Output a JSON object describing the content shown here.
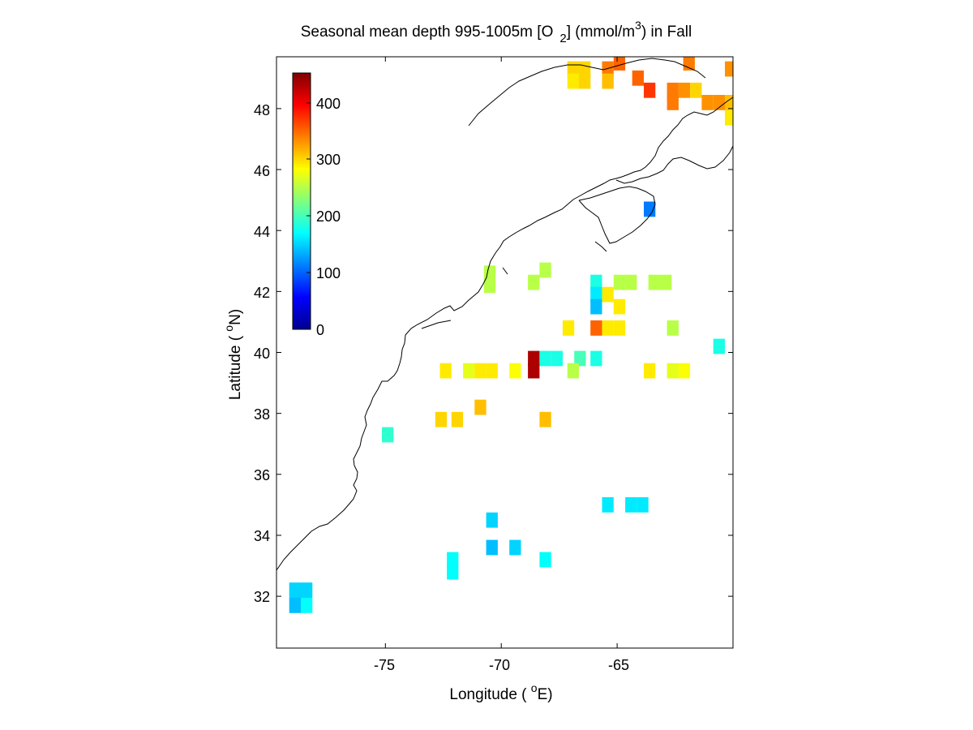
{
  "figure": {
    "title_main": "Seasonal mean depth 995-1005m [O",
    "title_sub": "2",
    "title_mid": "] (mmol/m",
    "title_sup": "3",
    "title_end": ") in  Fall"
  },
  "axes": {
    "xlabel_pre": "Longitude ( ",
    "xlabel_deg": "o",
    "xlabel_post": "E)",
    "ylabel_pre": "Latitude ( ",
    "ylabel_deg": "o",
    "ylabel_post": "N)",
    "xticks": [
      "-75",
      "-70",
      "-65"
    ],
    "yticks": [
      "32",
      "34",
      "36",
      "38",
      "40",
      "42",
      "44",
      "46",
      "48"
    ]
  },
  "colorbar": {
    "ticks": [
      "0",
      "100",
      "200",
      "300",
      "400"
    ],
    "range": [
      0,
      450
    ],
    "colormap": "jet"
  },
  "chart_data": {
    "type": "heatmap",
    "title": "Seasonal mean depth 995-1005m [O2] (mmol/m3) in Fall",
    "xlabel": "Longitude ( oE)",
    "ylabel": "Latitude ( oN)",
    "xlim": [
      -79.7,
      -60.0
    ],
    "ylim": [
      30.3,
      49.7
    ],
    "cell_size_deg": 0.5,
    "value_range": [
      0,
      450
    ],
    "units": "mmol/m3",
    "cells": [
      {
        "lon": -66.9,
        "lat": 49.3,
        "v": 300
      },
      {
        "lon": -66.4,
        "lat": 49.3,
        "v": 300
      },
      {
        "lon": -65.4,
        "lat": 49.3,
        "v": 340
      },
      {
        "lon": -64.9,
        "lat": 49.5,
        "v": 350
      },
      {
        "lon": -61.9,
        "lat": 49.5,
        "v": 340
      },
      {
        "lon": -60.1,
        "lat": 49.3,
        "v": 330
      },
      {
        "lon": -66.9,
        "lat": 48.9,
        "v": 290
      },
      {
        "lon": -66.4,
        "lat": 48.9,
        "v": 300
      },
      {
        "lon": -65.4,
        "lat": 48.9,
        "v": 310
      },
      {
        "lon": -64.1,
        "lat": 49.0,
        "v": 350
      },
      {
        "lon": -63.6,
        "lat": 48.6,
        "v": 370
      },
      {
        "lon": -62.6,
        "lat": 48.6,
        "v": 340
      },
      {
        "lon": -62.1,
        "lat": 48.6,
        "v": 330
      },
      {
        "lon": -61.6,
        "lat": 48.6,
        "v": 300
      },
      {
        "lon": -62.6,
        "lat": 48.2,
        "v": 340
      },
      {
        "lon": -61.1,
        "lat": 48.2,
        "v": 330
      },
      {
        "lon": -60.6,
        "lat": 48.2,
        "v": 330
      },
      {
        "lon": -60.1,
        "lat": 48.2,
        "v": 310
      },
      {
        "lon": -60.1,
        "lat": 47.7,
        "v": 290
      },
      {
        "lon": -63.6,
        "lat": 44.7,
        "v": 110
      },
      {
        "lon": -70.5,
        "lat": 42.6,
        "v": 250
      },
      {
        "lon": -70.5,
        "lat": 42.2,
        "v": 250
      },
      {
        "lon": -68.1,
        "lat": 42.7,
        "v": 250
      },
      {
        "lon": -68.6,
        "lat": 42.3,
        "v": 250
      },
      {
        "lon": -65.9,
        "lat": 42.3,
        "v": 180
      },
      {
        "lon": -64.9,
        "lat": 42.3,
        "v": 250
      },
      {
        "lon": -64.4,
        "lat": 42.3,
        "v": 250
      },
      {
        "lon": -63.4,
        "lat": 42.3,
        "v": 250
      },
      {
        "lon": -62.9,
        "lat": 42.3,
        "v": 250
      },
      {
        "lon": -65.9,
        "lat": 41.9,
        "v": 160
      },
      {
        "lon": -65.4,
        "lat": 41.9,
        "v": 290
      },
      {
        "lon": -65.9,
        "lat": 41.5,
        "v": 140
      },
      {
        "lon": -64.9,
        "lat": 41.5,
        "v": 290
      },
      {
        "lon": -67.1,
        "lat": 40.8,
        "v": 290
      },
      {
        "lon": -65.9,
        "lat": 40.8,
        "v": 350
      },
      {
        "lon": -65.4,
        "lat": 40.8,
        "v": 290
      },
      {
        "lon": -64.9,
        "lat": 40.8,
        "v": 290
      },
      {
        "lon": -62.6,
        "lat": 40.8,
        "v": 250
      },
      {
        "lon": -68.6,
        "lat": 39.8,
        "v": 430
      },
      {
        "lon": -68.6,
        "lat": 39.4,
        "v": 430
      },
      {
        "lon": -68.1,
        "lat": 39.8,
        "v": 180
      },
      {
        "lon": -67.6,
        "lat": 39.8,
        "v": 180
      },
      {
        "lon": -66.6,
        "lat": 39.8,
        "v": 200
      },
      {
        "lon": -65.9,
        "lat": 39.8,
        "v": 180
      },
      {
        "lon": -60.6,
        "lat": 40.2,
        "v": 180
      },
      {
        "lon": -70.9,
        "lat": 39.4,
        "v": 290
      },
      {
        "lon": -71.4,
        "lat": 39.4,
        "v": 270
      },
      {
        "lon": -72.4,
        "lat": 39.4,
        "v": 290
      },
      {
        "lon": -70.4,
        "lat": 39.4,
        "v": 290
      },
      {
        "lon": -69.4,
        "lat": 39.4,
        "v": 280
      },
      {
        "lon": -66.9,
        "lat": 39.4,
        "v": 250
      },
      {
        "lon": -62.1,
        "lat": 39.4,
        "v": 280
      },
      {
        "lon": -62.6,
        "lat": 39.4,
        "v": 270
      },
      {
        "lon": -63.6,
        "lat": 39.4,
        "v": 290
      },
      {
        "lon": -70.9,
        "lat": 38.2,
        "v": 310
      },
      {
        "lon": -72.6,
        "lat": 37.8,
        "v": 300
      },
      {
        "lon": -71.9,
        "lat": 37.8,
        "v": 300
      },
      {
        "lon": -68.1,
        "lat": 37.8,
        "v": 310
      },
      {
        "lon": -74.9,
        "lat": 37.3,
        "v": 190
      },
      {
        "lon": -65.4,
        "lat": 35.0,
        "v": 160
      },
      {
        "lon": -64.4,
        "lat": 35.0,
        "v": 160
      },
      {
        "lon": -63.9,
        "lat": 35.0,
        "v": 160
      },
      {
        "lon": -70.4,
        "lat": 34.5,
        "v": 150
      },
      {
        "lon": -70.4,
        "lat": 33.6,
        "v": 140
      },
      {
        "lon": -69.4,
        "lat": 33.6,
        "v": 150
      },
      {
        "lon": -72.1,
        "lat": 33.2,
        "v": 170
      },
      {
        "lon": -68.1,
        "lat": 33.2,
        "v": 170
      },
      {
        "lon": -72.1,
        "lat": 32.8,
        "v": 170
      },
      {
        "lon": -78.9,
        "lat": 32.2,
        "v": 150
      },
      {
        "lon": -78.4,
        "lat": 32.2,
        "v": 150
      },
      {
        "lon": -78.9,
        "lat": 31.7,
        "v": 140
      },
      {
        "lon": -78.4,
        "lat": 31.7,
        "v": 170
      }
    ]
  }
}
